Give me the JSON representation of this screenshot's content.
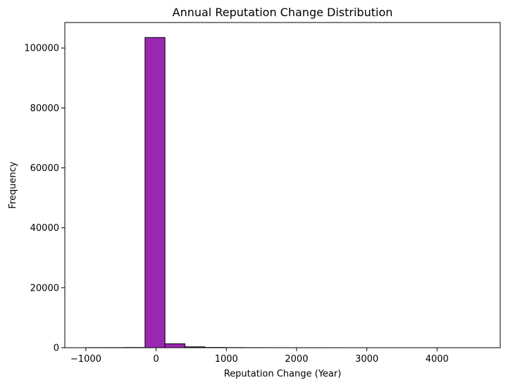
{
  "chart_data": {
    "type": "bar",
    "title": "Annual Reputation Change Distribution",
    "xlabel": "Reputation Change (Year)",
    "ylabel": "Frequency",
    "xlim": [
      -1300,
      4900
    ],
    "ylim": [
      0,
      108500
    ],
    "x_ticks": [
      -1000,
      0,
      1000,
      2000,
      3000,
      4000
    ],
    "y_ticks": [
      0,
      20000,
      40000,
      60000,
      80000,
      100000
    ],
    "bin_edges": [
      -1010,
      -726,
      -442,
      -158,
      126,
      410,
      694,
      978,
      1262,
      1546,
      1830,
      2114,
      2398,
      2682,
      2966,
      3250,
      3534,
      3818,
      4102,
      4386,
      4670
    ],
    "values": [
      30,
      40,
      70,
      103500,
      1300,
      280,
      90,
      45,
      25,
      15,
      10,
      8,
      6,
      4,
      3,
      3,
      2,
      2,
      1,
      2
    ],
    "grid": false,
    "bar_color": "#9C27B0",
    "edge_color": "#000000"
  }
}
